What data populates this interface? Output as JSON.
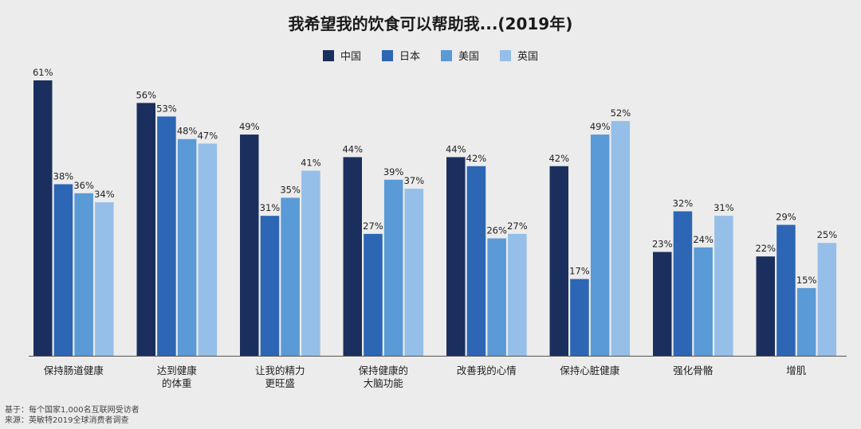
{
  "chart_data": {
    "type": "bar",
    "title": "我希望我的饮食可以帮助我...(2019年)",
    "xlabel": "",
    "ylabel": "",
    "ylim": [
      0,
      65
    ],
    "grid": false,
    "legend": "top-center",
    "categories": [
      [
        "保持肠道健康"
      ],
      [
        "达到健康",
        "的体重"
      ],
      [
        "让我的精力",
        "更旺盛"
      ],
      [
        "保持健康的",
        "大脑功能"
      ],
      [
        "改善我的心情"
      ],
      [
        "保持心脏健康"
      ],
      [
        "强化骨骼"
      ],
      [
        "增肌"
      ]
    ],
    "series": [
      {
        "name": "中国",
        "color": "#1b2f5e",
        "values": [
          61,
          56,
          49,
          44,
          44,
          42,
          23,
          22
        ]
      },
      {
        "name": "日本",
        "color": "#2c66b5",
        "values": [
          38,
          53,
          31,
          27,
          42,
          17,
          32,
          29
        ]
      },
      {
        "name": "美国",
        "color": "#5a9ad6",
        "values": [
          36,
          48,
          35,
          39,
          26,
          49,
          24,
          15
        ]
      },
      {
        "name": "英国",
        "color": "#95bfe8",
        "values": [
          34,
          47,
          41,
          37,
          27,
          52,
          31,
          25
        ]
      }
    ],
    "value_suffix": "%"
  },
  "footnotes": [
    "基于：每个国家1,000名互联网受访者",
    "来源：英敏特2019全球消费者调查"
  ]
}
